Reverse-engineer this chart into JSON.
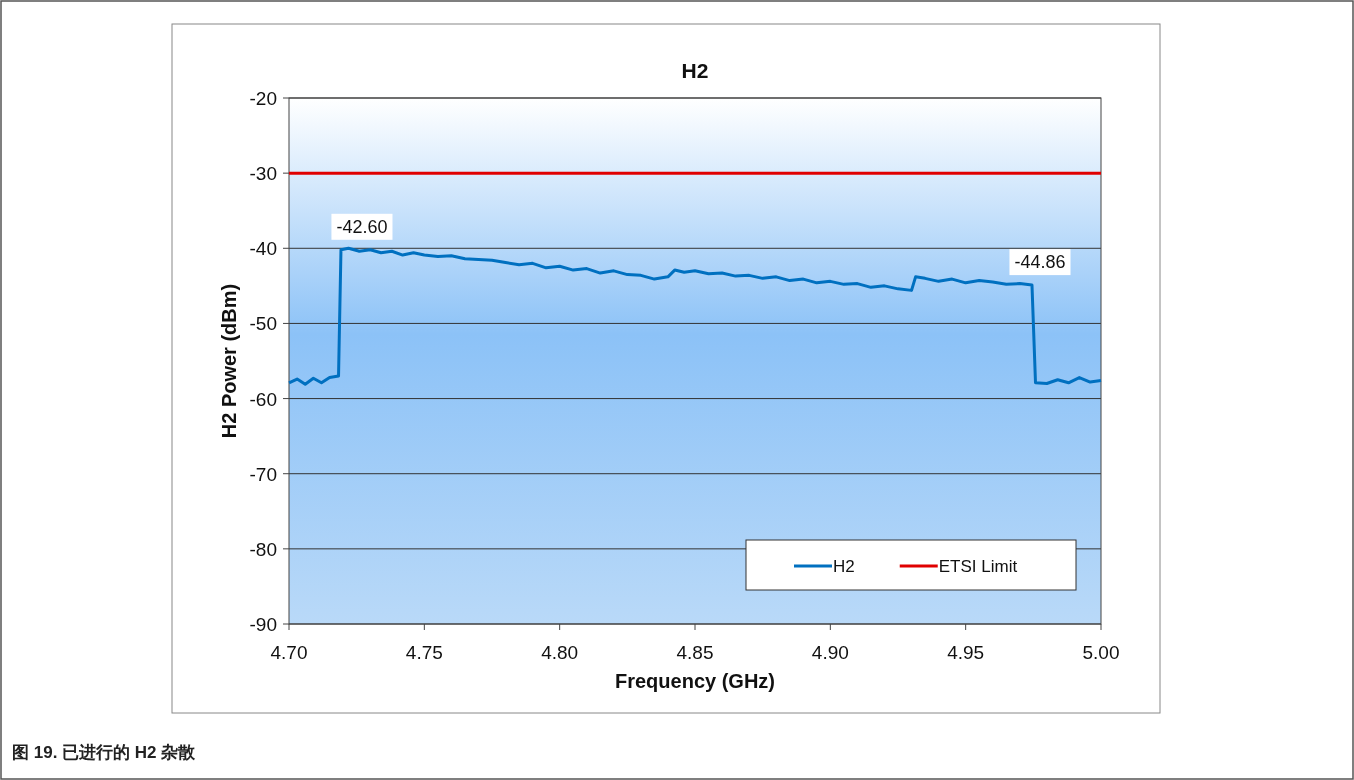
{
  "chart_data": {
    "type": "line",
    "title": "H2",
    "xlabel": "Frequency (GHz)",
    "ylabel": "H2 Power (dBm)",
    "xlim": [
      4.7,
      5.0
    ],
    "xticks": [
      {
        "value": 4.7,
        "label": "4.70"
      },
      {
        "value": 4.75,
        "label": "4.75"
      },
      {
        "value": 4.8,
        "label": "4.80"
      },
      {
        "value": 4.85,
        "label": "4.85"
      },
      {
        "value": 4.9,
        "label": "4.90"
      },
      {
        "value": 4.95,
        "label": "4.95"
      },
      {
        "value": 5.0,
        "label": "5.00"
      }
    ],
    "ylim": [
      -90,
      -20
    ],
    "yticks": [
      -90,
      -80,
      -70,
      -60,
      -50,
      -40,
      -30,
      -20
    ],
    "grid": "y",
    "legend": "bottom right",
    "marker": "none",
    "line_style": "solid",
    "series": [
      {
        "name": "H2",
        "color": "#0070c0",
        "x": [
          4.7,
          4.703,
          4.706,
          4.709,
          4.712,
          4.715,
          4.7183,
          4.7192,
          4.722,
          4.726,
          4.73,
          4.734,
          4.738,
          4.742,
          4.746,
          4.75,
          4.755,
          4.76,
          4.765,
          4.77,
          4.775,
          4.78,
          4.785,
          4.79,
          4.795,
          4.8,
          4.805,
          4.81,
          4.815,
          4.82,
          4.825,
          4.83,
          4.835,
          4.84,
          4.8425,
          4.846,
          4.85,
          4.855,
          4.86,
          4.865,
          4.87,
          4.875,
          4.88,
          4.885,
          4.89,
          4.895,
          4.9,
          4.905,
          4.91,
          4.915,
          4.92,
          4.925,
          4.93,
          4.9315,
          4.935,
          4.94,
          4.945,
          4.95,
          4.955,
          4.96,
          4.965,
          4.97,
          4.9745,
          4.9758,
          4.98,
          4.984,
          4.988,
          4.992,
          4.996,
          5.0
        ],
        "values": [
          -57.9,
          -57.4,
          -58.1,
          -57.3,
          -57.9,
          -57.2,
          -57.0,
          -40.2,
          -40.0,
          -40.4,
          -40.2,
          -40.6,
          -40.4,
          -40.9,
          -40.6,
          -40.9,
          -41.1,
          -41.0,
          -41.4,
          -41.5,
          -41.6,
          -41.9,
          -42.2,
          -42.0,
          -42.6,
          -42.4,
          -42.9,
          -42.7,
          -43.3,
          -43.0,
          -43.5,
          -43.6,
          -44.1,
          -43.8,
          -42.9,
          -43.2,
          -43.0,
          -43.4,
          -43.3,
          -43.7,
          -43.6,
          -44.0,
          -43.8,
          -44.3,
          -44.1,
          -44.6,
          -44.4,
          -44.8,
          -44.7,
          -45.2,
          -45.0,
          -45.4,
          -45.6,
          -43.8,
          -44.0,
          -44.4,
          -44.1,
          -44.6,
          -44.3,
          -44.5,
          -44.8,
          -44.7,
          -44.9,
          -57.9,
          -58.0,
          -57.5,
          -57.9,
          -57.2,
          -57.8,
          -57.6
        ]
      }
    ],
    "ref_lines": [
      {
        "axis": "y",
        "value": -30,
        "label": "ETSI Limit",
        "color": "#e00000"
      }
    ],
    "annotations": [
      {
        "text": "-42.60",
        "x": 4.724,
        "y": -40.2
      },
      {
        "text": "-44.86",
        "x": 4.9745,
        "y": -44.9
      },
      "图 19. 已进行的 H2 杂散"
    ]
  }
}
